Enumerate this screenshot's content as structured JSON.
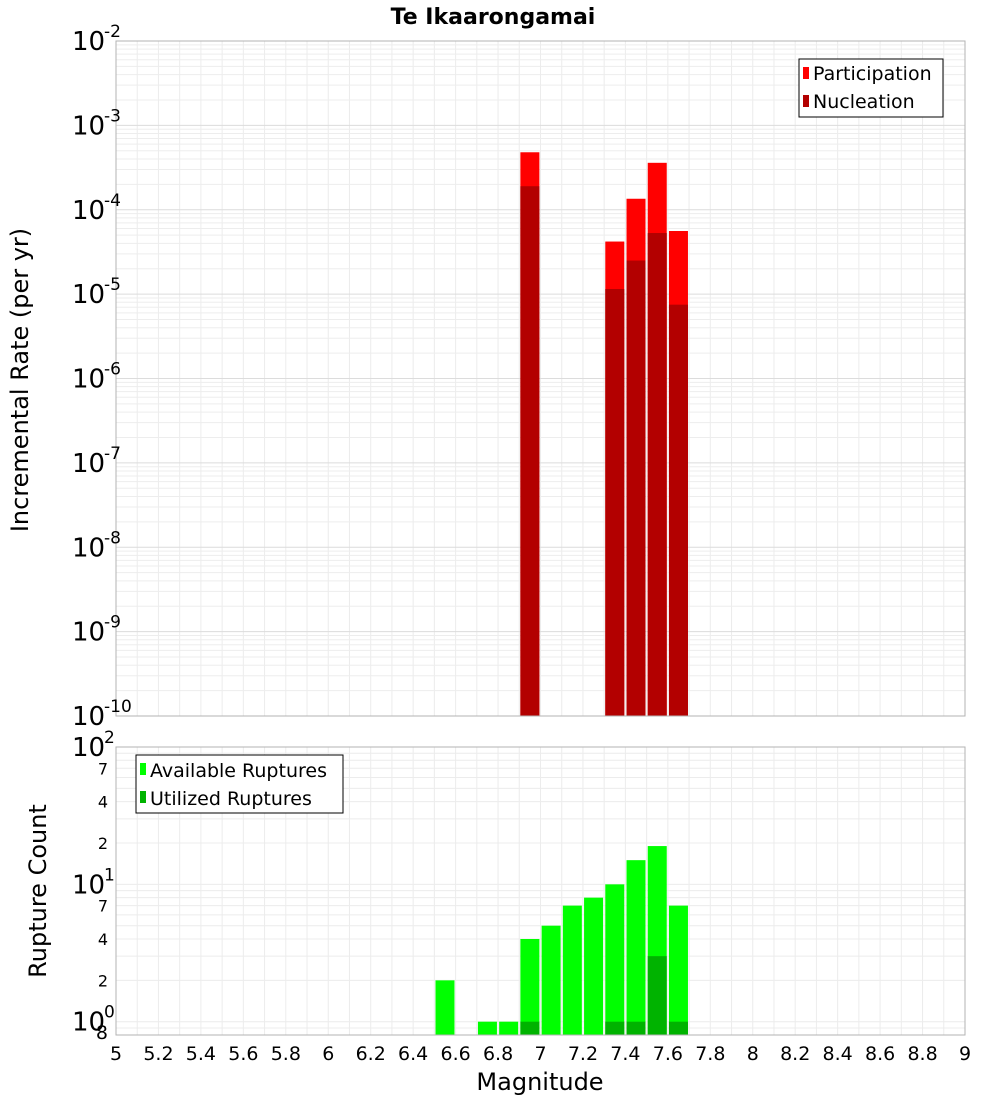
{
  "chart_data": [
    {
      "type": "bar",
      "title": "Te Ikaarongamai",
      "xlabel": "Magnitude",
      "ylabel": "Incremental Rate (per yr)",
      "yscale": "log",
      "ylim": [
        1e-10,
        0.01
      ],
      "xlim": [
        5,
        9
      ],
      "x_ticks": [
        "5",
        "5.2",
        "5.4",
        "5.6",
        "5.8",
        "6",
        "6.2",
        "6.4",
        "6.6",
        "6.8",
        "7",
        "7.2",
        "7.4",
        "7.6",
        "7.8",
        "8",
        "8.2",
        "8.4",
        "8.6",
        "8.8",
        "9"
      ],
      "y_ticks": [
        {
          "base": "10",
          "exp": "-10",
          "value": 1e-10
        },
        {
          "base": "10",
          "exp": "-9",
          "value": 1e-09
        },
        {
          "base": "10",
          "exp": "-8",
          "value": 1e-08
        },
        {
          "base": "10",
          "exp": "-7",
          "value": 1e-07
        },
        {
          "base": "10",
          "exp": "-6",
          "value": 1e-06
        },
        {
          "base": "10",
          "exp": "-5",
          "value": 1e-05
        },
        {
          "base": "10",
          "exp": "-4",
          "value": 0.0001
        },
        {
          "base": "10",
          "exp": "-3",
          "value": 0.001
        },
        {
          "base": "10",
          "exp": "-2",
          "value": 0.01
        }
      ],
      "legend_position": "top-right",
      "series": [
        {
          "name": "Participation",
          "color": "#ff0000",
          "x": [
            6.95,
            7.35,
            7.45,
            7.55,
            7.65
          ],
          "values": [
            0.00048,
            4.2e-05,
            0.000135,
            0.00036,
            5.6e-05
          ]
        },
        {
          "name": "Nucleation",
          "color": "#b30000",
          "x": [
            6.95,
            7.35,
            7.45,
            7.55,
            7.65
          ],
          "values": [
            0.00019,
            1.15e-05,
            2.5e-05,
            5.3e-05,
            7.5e-06
          ]
        }
      ]
    },
    {
      "type": "bar",
      "xlabel": "Magnitude",
      "ylabel": "Rupture Count",
      "yscale": "log",
      "ylim": [
        0.8,
        100
      ],
      "xlim": [
        5,
        9
      ],
      "y_major_ticks": [
        {
          "base": "10",
          "exp": "0",
          "value": 1
        },
        {
          "base": "10",
          "exp": "1",
          "value": 10
        },
        {
          "base": "10",
          "exp": "2",
          "value": 100
        }
      ],
      "y_minor_ticks": [
        {
          "label": "8",
          "value": 0.8
        },
        {
          "label": "2",
          "value": 2
        },
        {
          "label": "4",
          "value": 4
        },
        {
          "label": "7",
          "value": 7
        },
        {
          "label": "2",
          "value": 20
        },
        {
          "label": "4",
          "value": 40
        },
        {
          "label": "7",
          "value": 70
        }
      ],
      "legend_position": "top-left",
      "series": [
        {
          "name": "Available Ruptures",
          "color": "#00ff00",
          "x": [
            6.55,
            6.75,
            6.85,
            6.95,
            7.05,
            7.15,
            7.25,
            7.35,
            7.45,
            7.55,
            7.65
          ],
          "values": [
            2,
            1,
            1,
            4,
            5,
            7,
            8,
            10,
            15,
            19,
            7
          ]
        },
        {
          "name": "Utilized Ruptures",
          "color": "#00b300",
          "x": [
            6.95,
            7.35,
            7.45,
            7.55,
            7.65
          ],
          "values": [
            1,
            1,
            1,
            3,
            1
          ]
        }
      ]
    }
  ]
}
